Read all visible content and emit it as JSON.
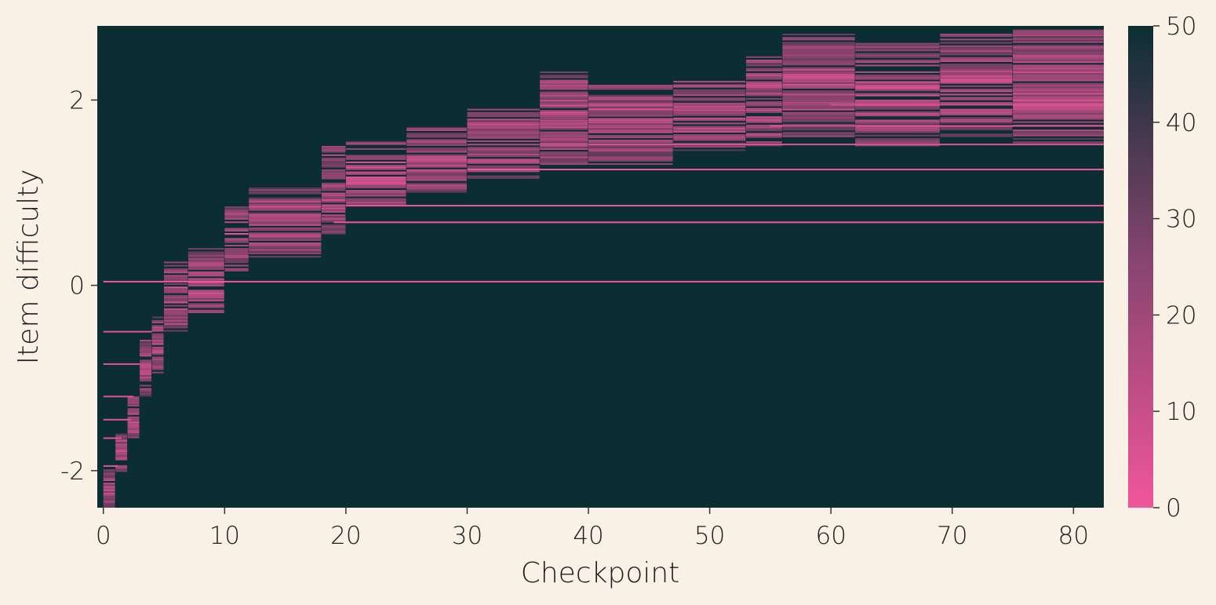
{
  "chart_data": {
    "type": "heatmap",
    "title": "",
    "xlabel": "Checkpoint",
    "ylabel": "Item difficulty",
    "xlim": [
      -0.5,
      82.5
    ],
    "ylim": [
      -2.4,
      2.8
    ],
    "x_ticks": [
      0,
      10,
      20,
      30,
      40,
      50,
      60,
      70,
      80
    ],
    "y_ticks": [
      -2,
      0,
      2
    ],
    "x_tick_labels": [
      "0",
      "10",
      "20",
      "30",
      "40",
      "50",
      "60",
      "70",
      "80"
    ],
    "y_tick_labels": [
      "-2",
      "0",
      "2"
    ],
    "colorbar": {
      "min": 0,
      "max": 50,
      "ticks": [
        0,
        10,
        20,
        30,
        40,
        50
      ],
      "tick_labels": [
        "0",
        "10",
        "20",
        "30",
        "40",
        "50"
      ],
      "color_low": "#f0569a",
      "color_mid": "#6a3e60",
      "color_high": "#0b2e33"
    },
    "background_value": 50,
    "frontier_items": [
      {
        "x_start": 0,
        "x_end": 0.9,
        "y_low": -2.4,
        "y_high": -2.0
      },
      {
        "x_start": 1,
        "x_end": 1.9,
        "y_low": -2.05,
        "y_high": -1.6
      },
      {
        "x_start": 2,
        "x_end": 2.9,
        "y_low": -1.65,
        "y_high": -1.2
      },
      {
        "x_start": 3,
        "x_end": 3.9,
        "y_low": -1.2,
        "y_high": -0.6
      },
      {
        "x_start": 4,
        "x_end": 4.9,
        "y_low": -0.95,
        "y_high": -0.35
      },
      {
        "x_start": 5,
        "x_end": 6.9,
        "y_low": -0.5,
        "y_high": 0.25
      },
      {
        "x_start": 7,
        "x_end": 9.9,
        "y_low": -0.3,
        "y_high": 0.4
      },
      {
        "x_start": 10,
        "x_end": 11.9,
        "y_low": 0.15,
        "y_high": 0.85
      },
      {
        "x_start": 12,
        "x_end": 17.9,
        "y_low": 0.3,
        "y_high": 1.05
      },
      {
        "x_start": 18,
        "x_end": 19.9,
        "y_low": 0.55,
        "y_high": 1.5
      },
      {
        "x_start": 20,
        "x_end": 24.9,
        "y_low": 0.85,
        "y_high": 1.55
      },
      {
        "x_start": 25,
        "x_end": 29.9,
        "y_low": 1.0,
        "y_high": 1.7
      },
      {
        "x_start": 30,
        "x_end": 35.9,
        "y_low": 1.15,
        "y_high": 1.9
      },
      {
        "x_start": 36,
        "x_end": 39.9,
        "y_low": 1.3,
        "y_high": 2.3
      },
      {
        "x_start": 40,
        "x_end": 46.9,
        "y_low": 1.3,
        "y_high": 2.15
      },
      {
        "x_start": 47,
        "x_end": 52.9,
        "y_low": 1.45,
        "y_high": 2.2
      },
      {
        "x_start": 53,
        "x_end": 55.9,
        "y_low": 1.5,
        "y_high": 2.5
      },
      {
        "x_start": 56,
        "x_end": 61.9,
        "y_low": 1.6,
        "y_high": 2.7
      },
      {
        "x_start": 62,
        "x_end": 68.9,
        "y_low": 1.5,
        "y_high": 2.6
      },
      {
        "x_start": 69,
        "x_end": 74.9,
        "y_low": 1.6,
        "y_high": 2.7
      },
      {
        "x_start": 75,
        "x_end": 82.5,
        "y_low": 1.5,
        "y_high": 2.75
      }
    ],
    "persistent_items": [
      {
        "x_start": 0,
        "x_end": 82.5,
        "y": 0.04,
        "value": 0
      },
      {
        "x_start": 19,
        "x_end": 82.5,
        "y": 0.68,
        "value": 0
      },
      {
        "x_start": 20,
        "x_end": 82.5,
        "y": 0.86,
        "value": 0
      },
      {
        "x_start": 30,
        "x_end": 82.5,
        "y": 1.25,
        "value": 0
      },
      {
        "x_start": 40,
        "x_end": 82.5,
        "y": 1.52,
        "value": 3
      },
      {
        "x_start": 55,
        "x_end": 82.5,
        "y": 1.72,
        "value": 3
      },
      {
        "x_start": 60,
        "x_end": 82.5,
        "y": 1.95,
        "value": 5
      },
      {
        "x_start": 0,
        "x_end": 4,
        "y": -0.5,
        "value": 3
      },
      {
        "x_start": 0,
        "x_end": 3,
        "y": -0.85,
        "value": 3
      },
      {
        "x_start": 0,
        "x_end": 2.5,
        "y": -1.2,
        "value": 3
      },
      {
        "x_start": 0,
        "x_end": 2.3,
        "y": -1.45,
        "value": 3
      },
      {
        "x_start": 0,
        "x_end": 1.5,
        "y": -1.65,
        "value": 3
      },
      {
        "x_start": 0,
        "x_end": 1.2,
        "y": -1.95,
        "value": 3
      }
    ]
  }
}
